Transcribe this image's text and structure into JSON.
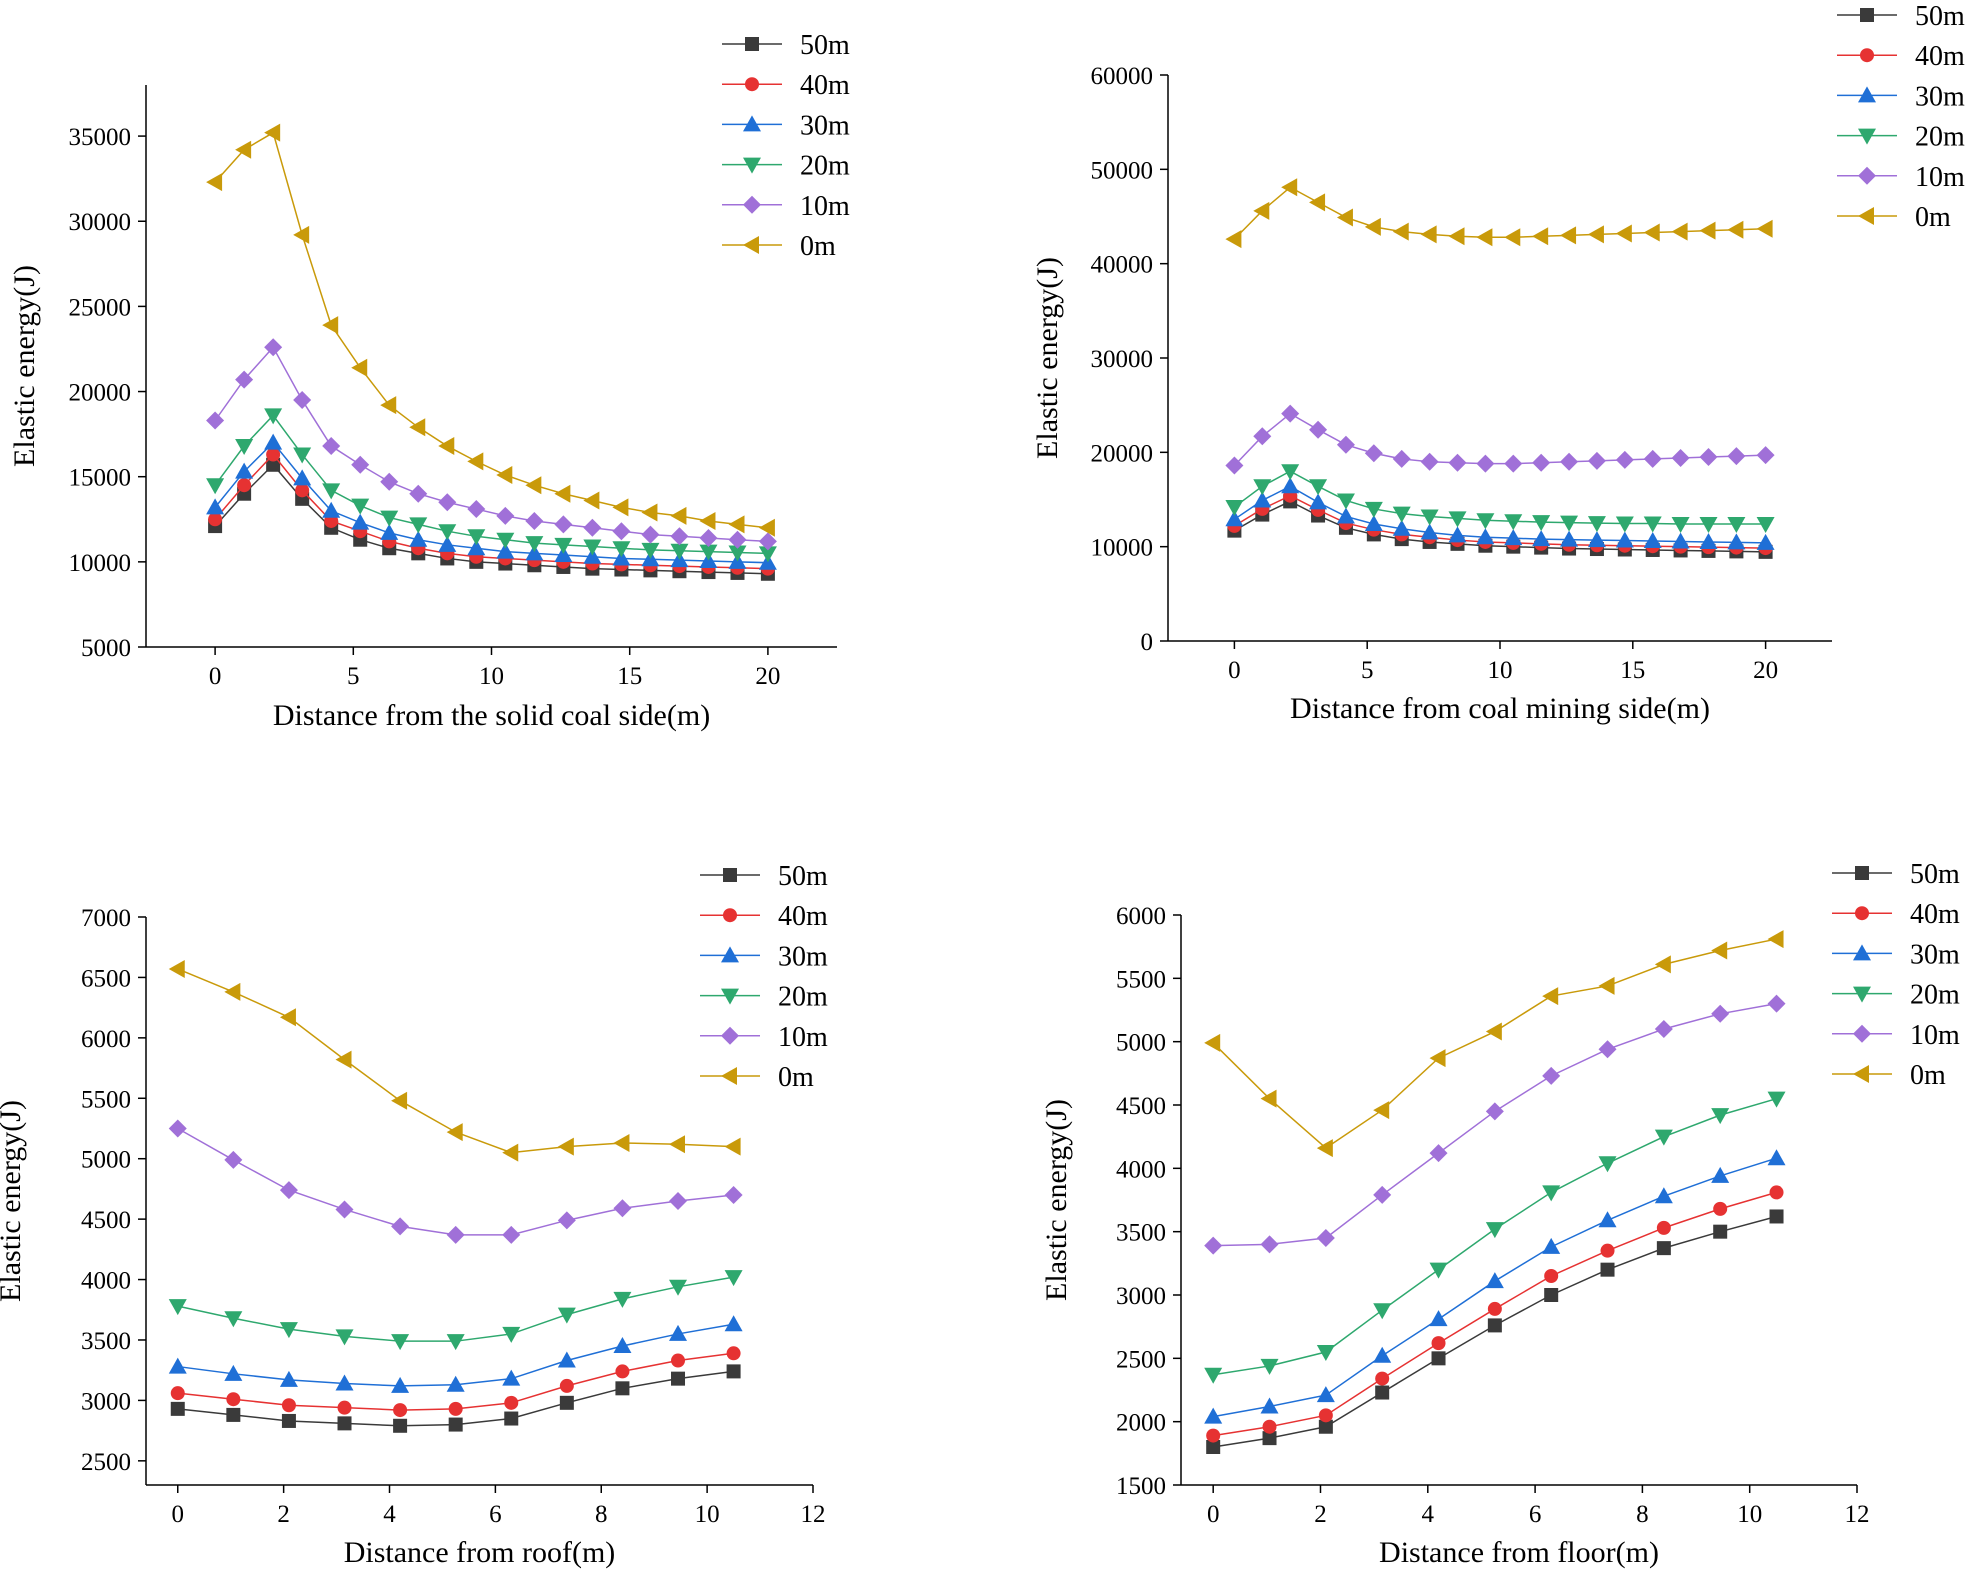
{
  "colors": {
    "50m": "#3a3a3a",
    "40m": "#e63232",
    "30m": "#1f6fd6",
    "20m": "#2ea86e",
    "10m": "#a070d8",
    "0m": "#c99a0a"
  },
  "chart_data": [
    {
      "type": "line",
      "title": "",
      "xlabel": "Distance from the solid coal side(m)",
      "ylabel": "Elastic energy(J)",
      "xlim": [
        -2.5,
        22.5
      ],
      "ylim": [
        5000,
        38000
      ],
      "xticks": [
        0,
        5,
        10,
        15,
        20
      ],
      "yticks": [
        5000,
        10000,
        15000,
        20000,
        25000,
        30000,
        35000
      ],
      "legend": "top-right",
      "x": [
        0,
        1.05,
        2.1,
        3.15,
        4.2,
        5.25,
        6.3,
        7.35,
        8.4,
        9.45,
        10.5,
        11.55,
        12.6,
        13.65,
        14.7,
        15.75,
        16.8,
        17.85,
        18.9,
        20
      ],
      "series": [
        {
          "name": "50m",
          "values": [
            12100,
            14000,
            15700,
            13700,
            12000,
            11300,
            10800,
            10500,
            10200,
            10000,
            9900,
            9800,
            9700,
            9600,
            9550,
            9500,
            9450,
            9400,
            9350,
            9300
          ]
        },
        {
          "name": "40m",
          "values": [
            12500,
            14500,
            16300,
            14200,
            12400,
            11800,
            11200,
            10800,
            10500,
            10300,
            10200,
            10100,
            10000,
            9900,
            9850,
            9800,
            9750,
            9700,
            9650,
            9600
          ]
        },
        {
          "name": "30m",
          "values": [
            13200,
            15300,
            17000,
            14900,
            13000,
            12300,
            11700,
            11300,
            11000,
            10800,
            10600,
            10500,
            10400,
            10300,
            10200,
            10150,
            10100,
            10050,
            10000,
            9950
          ]
        },
        {
          "name": "20m",
          "values": [
            14500,
            16800,
            18600,
            16300,
            14200,
            13300,
            12600,
            12200,
            11800,
            11500,
            11300,
            11100,
            11000,
            10900,
            10800,
            10700,
            10650,
            10600,
            10550,
            10500
          ]
        },
        {
          "name": "10m",
          "values": [
            18300,
            20700,
            22600,
            19500,
            16800,
            15700,
            14700,
            14000,
            13500,
            13100,
            12700,
            12400,
            12200,
            12000,
            11800,
            11600,
            11500,
            11400,
            11300,
            11200
          ]
        },
        {
          "name": "0m",
          "values": [
            32300,
            34200,
            35200,
            29200,
            23900,
            21400,
            19200,
            17900,
            16800,
            15900,
            15100,
            14500,
            14000,
            13600,
            13200,
            12900,
            12700,
            12400,
            12200,
            12000
          ]
        }
      ]
    },
    {
      "type": "line",
      "title": "",
      "xlabel": "Distance from coal mining side(m)",
      "ylabel": "Elastic energy(J)",
      "xlim": [
        -2.5,
        22.5
      ],
      "ylim": [
        0,
        60000
      ],
      "xticks": [
        0,
        5,
        10,
        15,
        20
      ],
      "yticks": [
        0,
        10000,
        20000,
        30000,
        40000,
        50000,
        60000
      ],
      "legend": "top-right",
      "x": [
        0,
        1.05,
        2.1,
        3.15,
        4.2,
        5.25,
        6.3,
        7.35,
        8.4,
        9.45,
        10.5,
        11.55,
        12.6,
        13.65,
        14.7,
        15.75,
        16.8,
        17.85,
        18.9,
        20
      ],
      "series": [
        {
          "name": "50m",
          "values": [
            11700,
            13400,
            14800,
            13300,
            12000,
            11300,
            10800,
            10500,
            10300,
            10100,
            10000,
            9900,
            9800,
            9750,
            9700,
            9650,
            9600,
            9550,
            9500,
            9450
          ]
        },
        {
          "name": "40m",
          "values": [
            12200,
            14000,
            15400,
            13900,
            12500,
            11800,
            11300,
            11000,
            10700,
            10500,
            10400,
            10300,
            10200,
            10150,
            10100,
            10050,
            10000,
            9950,
            9900,
            9850
          ]
        },
        {
          "name": "30m",
          "values": [
            12900,
            14900,
            16400,
            14700,
            13200,
            12400,
            11900,
            11500,
            11200,
            11000,
            10900,
            10800,
            10750,
            10700,
            10650,
            10600,
            10550,
            10500,
            10450,
            10400
          ]
        },
        {
          "name": "20m",
          "values": [
            14200,
            16400,
            18000,
            16400,
            14900,
            14000,
            13500,
            13200,
            13000,
            12800,
            12700,
            12600,
            12550,
            12500,
            12450,
            12450,
            12400,
            12400,
            12400,
            12400
          ]
        },
        {
          "name": "10m",
          "values": [
            18600,
            21700,
            24100,
            22400,
            20800,
            19900,
            19300,
            19000,
            18900,
            18800,
            18800,
            18900,
            19000,
            19100,
            19200,
            19300,
            19400,
            19500,
            19600,
            19700
          ]
        },
        {
          "name": "0m",
          "values": [
            42600,
            45600,
            48100,
            46500,
            44900,
            43900,
            43400,
            43100,
            42900,
            42800,
            42800,
            42900,
            43000,
            43100,
            43200,
            43300,
            43400,
            43500,
            43600,
            43700
          ]
        }
      ]
    },
    {
      "type": "line",
      "title": "",
      "xlabel": "Distance from roof(m)",
      "ylabel": "Elastic energy(J)",
      "xlim": [
        -0.6,
        12
      ],
      "ylim": [
        2300,
        7000
      ],
      "xticks": [
        0,
        2,
        4,
        6,
        8,
        10,
        12
      ],
      "yticks": [
        2500,
        3000,
        3500,
        4000,
        4500,
        5000,
        5500,
        6000,
        6500,
        7000
      ],
      "legend": "top-right",
      "x": [
        0,
        1.05,
        2.1,
        3.15,
        4.2,
        5.25,
        6.3,
        7.35,
        8.4,
        9.45,
        10.5
      ],
      "series": [
        {
          "name": "50m",
          "values": [
            2930,
            2880,
            2830,
            2810,
            2790,
            2800,
            2850,
            2980,
            3100,
            3180,
            3240
          ]
        },
        {
          "name": "40m",
          "values": [
            3060,
            3010,
            2960,
            2940,
            2920,
            2930,
            2980,
            3120,
            3240,
            3330,
            3390
          ]
        },
        {
          "name": "30m",
          "values": [
            3280,
            3220,
            3170,
            3140,
            3120,
            3130,
            3180,
            3330,
            3450,
            3550,
            3630
          ]
        },
        {
          "name": "20m",
          "values": [
            3780,
            3680,
            3590,
            3530,
            3490,
            3490,
            3550,
            3710,
            3840,
            3940,
            4020
          ]
        },
        {
          "name": "10m",
          "values": [
            5250,
            4990,
            4740,
            4580,
            4440,
            4370,
            4370,
            4490,
            4590,
            4650,
            4700
          ]
        },
        {
          "name": "0m",
          "values": [
            6570,
            6380,
            6170,
            5820,
            5480,
            5220,
            5050,
            5100,
            5130,
            5120,
            5100
          ]
        }
      ]
    },
    {
      "type": "line",
      "title": "",
      "xlabel": "Distance from floor(m)",
      "ylabel": "Elastic energy(J)",
      "xlim": [
        -0.6,
        12
      ],
      "ylim": [
        1500,
        6000
      ],
      "xticks": [
        0,
        2,
        4,
        6,
        8,
        10,
        12
      ],
      "yticks": [
        1500,
        2000,
        2500,
        3000,
        3500,
        4000,
        4500,
        5000,
        5500,
        6000
      ],
      "legend": "top-right",
      "x": [
        0,
        1.05,
        2.1,
        3.15,
        4.2,
        5.25,
        6.3,
        7.35,
        8.4,
        9.45,
        10.5
      ],
      "series": [
        {
          "name": "50m",
          "values": [
            1800,
            1870,
            1960,
            2230,
            2500,
            2760,
            3000,
            3200,
            3370,
            3500,
            3620
          ]
        },
        {
          "name": "40m",
          "values": [
            1890,
            1960,
            2050,
            2340,
            2620,
            2890,
            3150,
            3350,
            3530,
            3680,
            3810
          ]
        },
        {
          "name": "30m",
          "values": [
            2040,
            2120,
            2210,
            2520,
            2810,
            3110,
            3380,
            3590,
            3780,
            3940,
            4080
          ]
        },
        {
          "name": "20m",
          "values": [
            2370,
            2440,
            2550,
            2880,
            3200,
            3520,
            3810,
            4040,
            4250,
            4420,
            4550
          ]
        },
        {
          "name": "10m",
          "values": [
            3390,
            3400,
            3450,
            3790,
            4120,
            4450,
            4730,
            4940,
            5100,
            5220,
            5300
          ]
        },
        {
          "name": "0m",
          "values": [
            4990,
            4550,
            4160,
            4460,
            4870,
            5080,
            5360,
            5440,
            5610,
            5720,
            5810
          ]
        }
      ]
    }
  ]
}
